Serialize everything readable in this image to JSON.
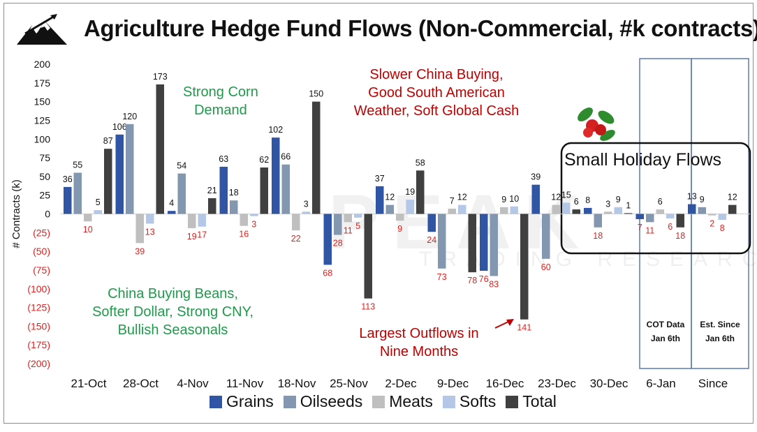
{
  "title": "Agriculture Hedge Fund Flows (Non-Commercial, #k contracts)",
  "colors": {
    "grains": "#2f55a4",
    "oilseeds": "#8497b0",
    "meats": "#bfbfbf",
    "softs": "#b4c7e7",
    "total": "#404040",
    "positive_label": "#111111",
    "negative_label": "#e02020",
    "green_text": "#1f9a4a",
    "red_text": "#c00000",
    "cot_box": "#5a78b4"
  },
  "annotations": {
    "corn": [
      "Strong Corn",
      "Demand"
    ],
    "china_beans": [
      "China Buying Beans,",
      "Softer Dollar, Strong CNY,",
      "Bullish Seasonals"
    ],
    "slower_china": [
      "Slower China Buying,",
      "Good South American",
      "Weather, Soft Global Cash"
    ],
    "largest_outflows": [
      "Largest Outflows in",
      "Nine Months"
    ],
    "holiday": "Small Holiday Flows"
  },
  "cot_boxes": {
    "cot_data": [
      "COT Data",
      "Jan 6th"
    ],
    "est_since": [
      "Est. Since",
      "Jan 6th"
    ]
  },
  "watermark": {
    "main": "PEAK",
    "sub": "TRADING RESEARCH"
  },
  "chart_data": {
    "type": "bar",
    "title": "Agriculture Hedge Fund Flows (Non-Commercial, #k contracts)",
    "xlabel": "",
    "ylabel": "# Contracts (k)",
    "ylim": [
      -200,
      200
    ],
    "yticks": [
      200,
      175,
      150,
      125,
      100,
      75,
      50,
      25,
      0,
      -25,
      -50,
      -75,
      -100,
      -125,
      -150,
      -175,
      -200
    ],
    "ytick_labels": [
      "200",
      "175",
      "150",
      "125",
      "100",
      "75",
      "50",
      "25",
      "0",
      "(25)",
      "(50)",
      "(75)",
      "(100)",
      "(125)",
      "(150)",
      "(175)",
      "(200)"
    ],
    "categories": [
      "21-Oct",
      "28-Oct",
      "4-Nov",
      "11-Nov",
      "18-Nov",
      "25-Nov",
      "2-Dec",
      "9-Dec",
      "16-Dec",
      "23-Dec",
      "30-Dec",
      "6-Jan",
      "Since"
    ],
    "legend_position": "bottom",
    "series": [
      {
        "name": "Grains",
        "values": [
          36,
          106,
          4,
          63,
          102,
          -68,
          37,
          -24,
          -76,
          39,
          8,
          -7,
          13
        ]
      },
      {
        "name": "Oilseeds",
        "values": [
          55,
          120,
          54,
          18,
          66,
          -28,
          12,
          -73,
          -83,
          -60,
          -18,
          -11,
          9
        ]
      },
      {
        "name": "Meats",
        "values": [
          -10,
          -39,
          -19,
          -16,
          -22,
          -11,
          -9,
          7,
          9,
          12,
          3,
          6,
          -2
        ]
      },
      {
        "name": "Softs",
        "values": [
          5,
          -13,
          -17,
          -3,
          3,
          -5,
          19,
          12,
          10,
          15,
          9,
          -6,
          -8
        ]
      },
      {
        "name": "Total",
        "values": [
          87,
          173,
          21,
          62,
          150,
          -113,
          58,
          -78,
          -141,
          6,
          1,
          -18,
          12
        ]
      }
    ]
  }
}
